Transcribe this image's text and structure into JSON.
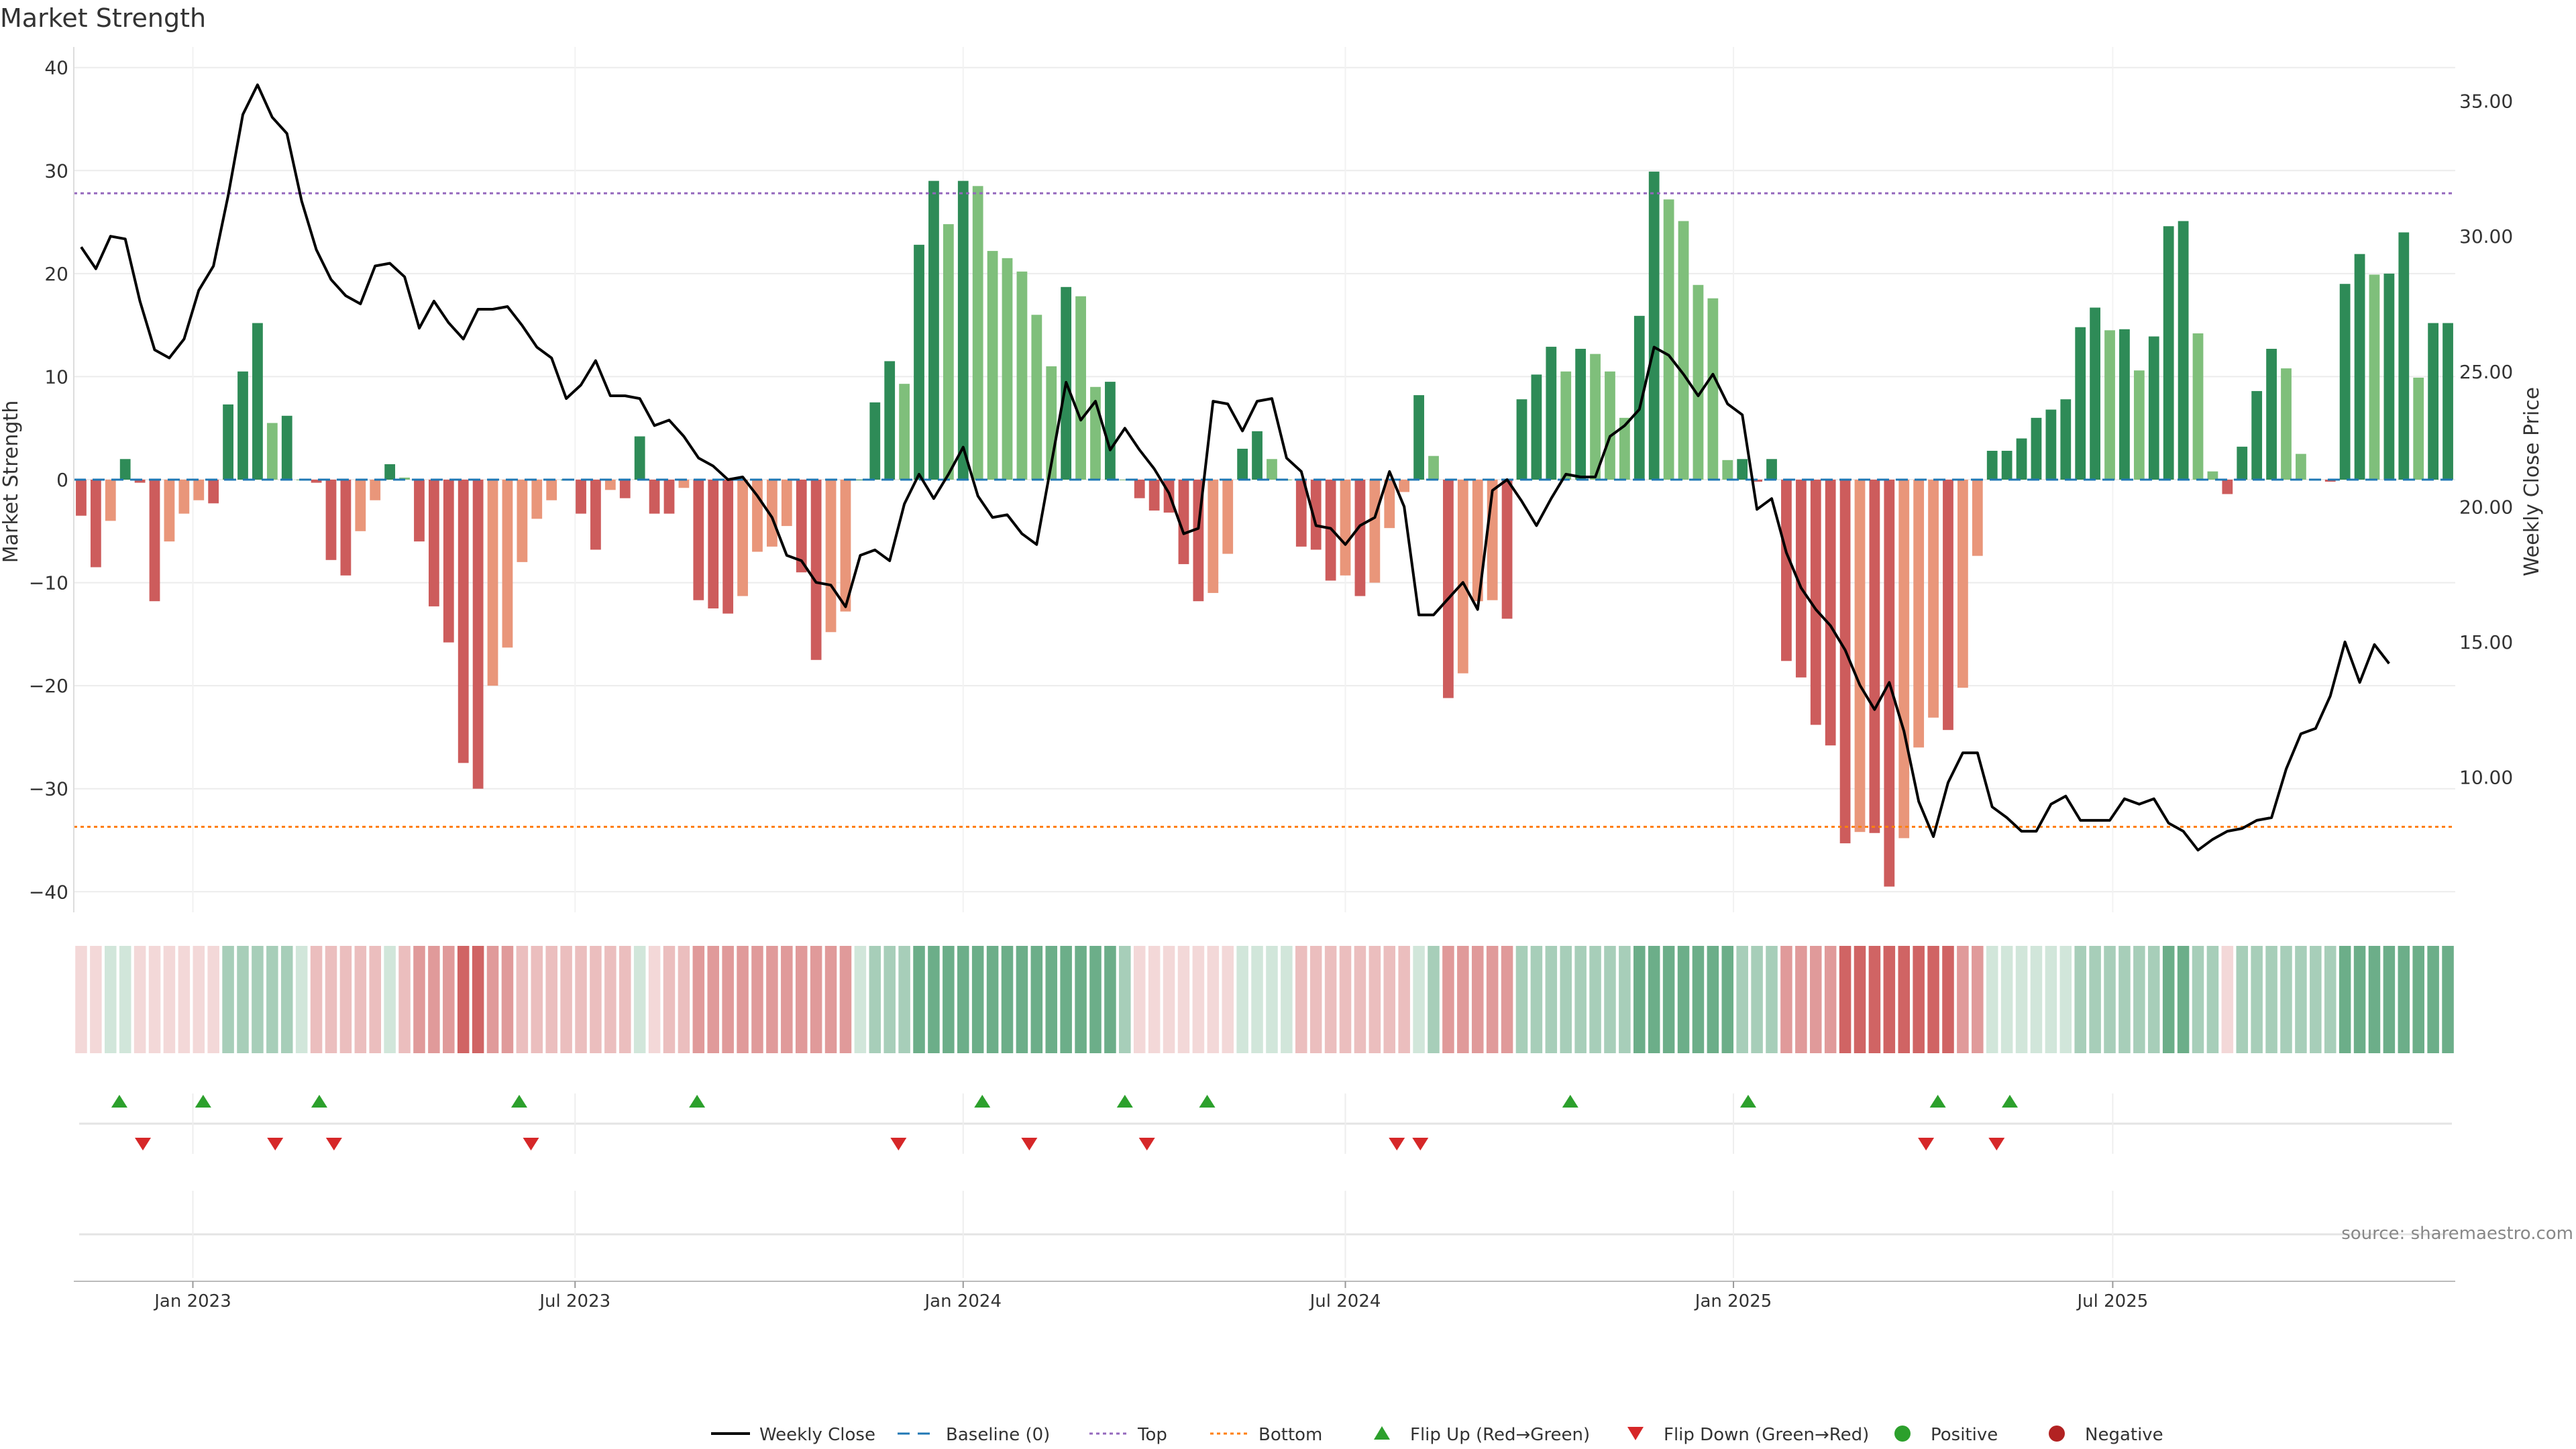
{
  "colors": {
    "strong_green": "#2e8b57",
    "light_green": "#7fbf7b",
    "strong_red": "#cd5c5c",
    "light_red": "#e9967a",
    "price_line": "#000000",
    "baseline": "#1f77b4",
    "top": "#9467bd",
    "bottom": "#ff7f0e",
    "flip_up": "#2ca02c",
    "flip_down": "#d62728",
    "positive": "#2ca02c",
    "negative": "#b22222"
  },
  "chart_data": {
    "type": "bar",
    "title": "Market Strength",
    "source": "source: sharemaestro.com",
    "ylabel": "Market Strength",
    "y2label": "Weekly Close Price",
    "ylim": [
      -42,
      42
    ],
    "y2lim": [
      5,
      37
    ],
    "yticks": [
      {
        "v": 40,
        "label": "40"
      },
      {
        "v": 30,
        "label": "30"
      },
      {
        "v": 20,
        "label": "20"
      },
      {
        "v": 10,
        "label": "10"
      },
      {
        "v": 0,
        "label": "0"
      },
      {
        "v": -10,
        "label": "−10"
      },
      {
        "v": -20,
        "label": "−20"
      },
      {
        "v": -30,
        "label": "−30"
      },
      {
        "v": -40,
        "label": "−40"
      }
    ],
    "y2ticks": [
      {
        "v": 35,
        "label": "35.00"
      },
      {
        "v": 30,
        "label": "30.00"
      },
      {
        "v": 25,
        "label": "25.00"
      },
      {
        "v": 20,
        "label": "20.00"
      },
      {
        "v": 15,
        "label": "15.00"
      },
      {
        "v": 10,
        "label": "10.00"
      }
    ],
    "xticks": [
      {
        "i": 7.6,
        "label": "Jan 2023"
      },
      {
        "i": 33.6,
        "label": "Jul 2023"
      },
      {
        "i": 60.0,
        "label": "Jan 2024"
      },
      {
        "i": 86.0,
        "label": "Jul 2024"
      },
      {
        "i": 112.4,
        "label": "Jan 2025"
      },
      {
        "i": 138.2,
        "label": "Jul 2025"
      }
    ],
    "top_level": 27.8,
    "bottom_level": -33.7,
    "baseline": 0,
    "strength": [
      -3.5,
      -8.5,
      -4,
      2,
      -0.3,
      -11.8,
      -6,
      -3.3,
      -2,
      -2.3,
      7.3,
      10.5,
      15.2,
      5.5,
      6.2,
      0,
      -0.3,
      -7.8,
      -9.3,
      -5,
      -2,
      1.5,
      0.2,
      -6,
      -12.3,
      -15.8,
      -27.5,
      -30,
      -20,
      -16.3,
      -8,
      -3.8,
      -2,
      0,
      -3.3,
      -6.8,
      -1,
      -1.8,
      4.2,
      -3.3,
      -3.3,
      -0.8,
      -11.7,
      -12.5,
      -13,
      -11.3,
      -7,
      -6.5,
      -4.5,
      -9,
      -17.5,
      -14.8,
      -12.8,
      0,
      7.5,
      11.5,
      9.3,
      22.8,
      29,
      24.8,
      29,
      28.5,
      22.2,
      21.5,
      20.2,
      16,
      11,
      18.7,
      17.8,
      9,
      9.5,
      0,
      -1.8,
      -3,
      -3.2,
      -8.2,
      -11.8,
      -11,
      -7.2,
      3,
      4.7,
      2,
      0,
      -6.5,
      -6.8,
      -9.8,
      -9.3,
      -11.3,
      -10,
      -4.7,
      -1.2,
      8.2,
      2.3,
      -21.2,
      -18.8,
      -11.8,
      -11.7,
      -13.5,
      7.8,
      10.2,
      12.9,
      10.5,
      12.7,
      12.2,
      10.5,
      6,
      15.9,
      29.9,
      27.2,
      25.1,
      18.9,
      17.6,
      1.9,
      2,
      -0.2,
      2,
      -17.6,
      -19.2,
      -23.8,
      -25.8,
      -35.3,
      -34.2,
      -34.3,
      -39.5,
      -34.8,
      -26,
      -23.1,
      -24.3,
      -20.2,
      -7.4,
      2.8,
      2.8,
      4,
      6,
      6.8,
      7.8,
      14.8,
      16.7,
      14.5,
      14.6,
      10.6,
      13.9,
      24.6,
      25.1,
      14.2,
      0.8,
      -1.4,
      3.2,
      8.6,
      12.7,
      10.8,
      2.5,
      0,
      -0.2,
      19,
      21.9,
      19.9,
      20,
      24,
      9.9,
      15.2,
      15.2
    ],
    "price": [
      29.6,
      28.8,
      30.0,
      29.9,
      27.6,
      25.8,
      25.5,
      26.2,
      28.0,
      28.9,
      31.5,
      34.5,
      35.6,
      34.4,
      33.8,
      31.3,
      29.5,
      28.4,
      27.8,
      27.5,
      28.9,
      29.0,
      28.5,
      26.6,
      27.6,
      26.8,
      26.2,
      27.3,
      27.3,
      27.4,
      26.7,
      25.9,
      25.5,
      24.0,
      24.5,
      25.4,
      24.1,
      24.1,
      24.0,
      23.0,
      23.2,
      22.6,
      21.8,
      21.5,
      21.0,
      21.1,
      20.4,
      19.6,
      18.2,
      18.0,
      17.2,
      17.1,
      16.3,
      18.2,
      18.4,
      18.0,
      20.1,
      21.2,
      20.3,
      21.2,
      22.2,
      20.4,
      19.6,
      19.7,
      19.0,
      18.6,
      21.6,
      24.6,
      23.2,
      23.9,
      22.1,
      22.9,
      22.1,
      21.4,
      20.5,
      19.0,
      19.2,
      23.9,
      23.8,
      22.8,
      23.9,
      24.0,
      21.8,
      21.3,
      19.3,
      19.2,
      18.6,
      19.3,
      19.6,
      21.3,
      20.0,
      16.0,
      16.0,
      16.6,
      17.2,
      16.2,
      20.6,
      21.0,
      20.2,
      19.3,
      20.3,
      21.2,
      21.1,
      21.1,
      22.6,
      23.0,
      23.6,
      25.9,
      25.6,
      24.9,
      24.1,
      24.9,
      23.8,
      23.4,
      19.9,
      20.3,
      18.3,
      17.0,
      16.2,
      15.6,
      14.7,
      13.4,
      12.5,
      13.5,
      11.7,
      9.1,
      7.8,
      9.8,
      10.9,
      10.9,
      8.9,
      8.5,
      8.0,
      8.0,
      9.0,
      9.3,
      8.4,
      8.4,
      8.4,
      9.2,
      9.0,
      9.2,
      8.3,
      8.0,
      7.3,
      7.7,
      8.0,
      8.1,
      8.4,
      8.5,
      10.3,
      11.6,
      11.8,
      13.0,
      15.0,
      13.5,
      14.9,
      14.2
    ],
    "heat": [
      -1,
      -1,
      1,
      1,
      -1,
      -1,
      -1,
      -1,
      -1,
      -1,
      2,
      2,
      2,
      2,
      2,
      1,
      -2,
      -2,
      -2,
      -2,
      -2,
      1,
      -2,
      -3,
      -3,
      -3,
      -4,
      -4,
      -3,
      -3,
      -2,
      -2,
      -2,
      -2,
      -2,
      -2,
      -2,
      -2,
      1,
      -1,
      -2,
      -2,
      -3,
      -3,
      -3,
      -3,
      -3,
      -3,
      -3,
      -3,
      -3,
      -3,
      -3,
      1,
      2,
      2,
      2,
      3,
      3,
      3,
      3,
      3,
      3,
      3,
      3,
      3,
      3,
      3,
      3,
      3,
      3,
      2,
      -1,
      -1,
      -1,
      -1,
      -1,
      -1,
      -1,
      1,
      1,
      1,
      1,
      -2,
      -2,
      -2,
      -2,
      -2,
      -2,
      -2,
      -2,
      1,
      2,
      -3,
      -3,
      -3,
      -3,
      -3,
      2,
      2,
      2,
      2,
      2,
      2,
      2,
      2,
      3,
      3,
      3,
      3,
      3,
      3,
      3,
      2,
      2,
      2,
      -3,
      -3,
      -3,
      -3,
      -4,
      -4,
      -4,
      -4,
      -4,
      -4,
      -4,
      -4,
      -3,
      -3,
      1,
      1,
      1,
      1,
      1,
      1,
      2,
      2,
      2,
      2,
      2,
      2,
      3,
      3,
      2,
      2,
      -1,
      2,
      2,
      2,
      2,
      2,
      2,
      2,
      3,
      3,
      3,
      3,
      3,
      3,
      3,
      3
    ],
    "flips_up": [
      2.6,
      8.3,
      16.2,
      29.8,
      41.9,
      61.3,
      71.0,
      76.6,
      101.3,
      113.4,
      126.3,
      131.2
    ],
    "flips_down": [
      4.2,
      13.2,
      17.2,
      30.6,
      55.6,
      64.5,
      72.5,
      89.5,
      91.1,
      125.5,
      130.3
    ],
    "legend": [
      {
        "key": "weekly_close",
        "label": "Weekly Close"
      },
      {
        "key": "baseline",
        "label": "Baseline (0)"
      },
      {
        "key": "top",
        "label": "Top"
      },
      {
        "key": "bottom",
        "label": "Bottom"
      },
      {
        "key": "flip_up",
        "label": "Flip Up (Red→Green)"
      },
      {
        "key": "flip_down",
        "label": "Flip Down (Green→Red)"
      },
      {
        "key": "positive",
        "label": "Positive"
      },
      {
        "key": "negative",
        "label": "Negative"
      }
    ]
  }
}
